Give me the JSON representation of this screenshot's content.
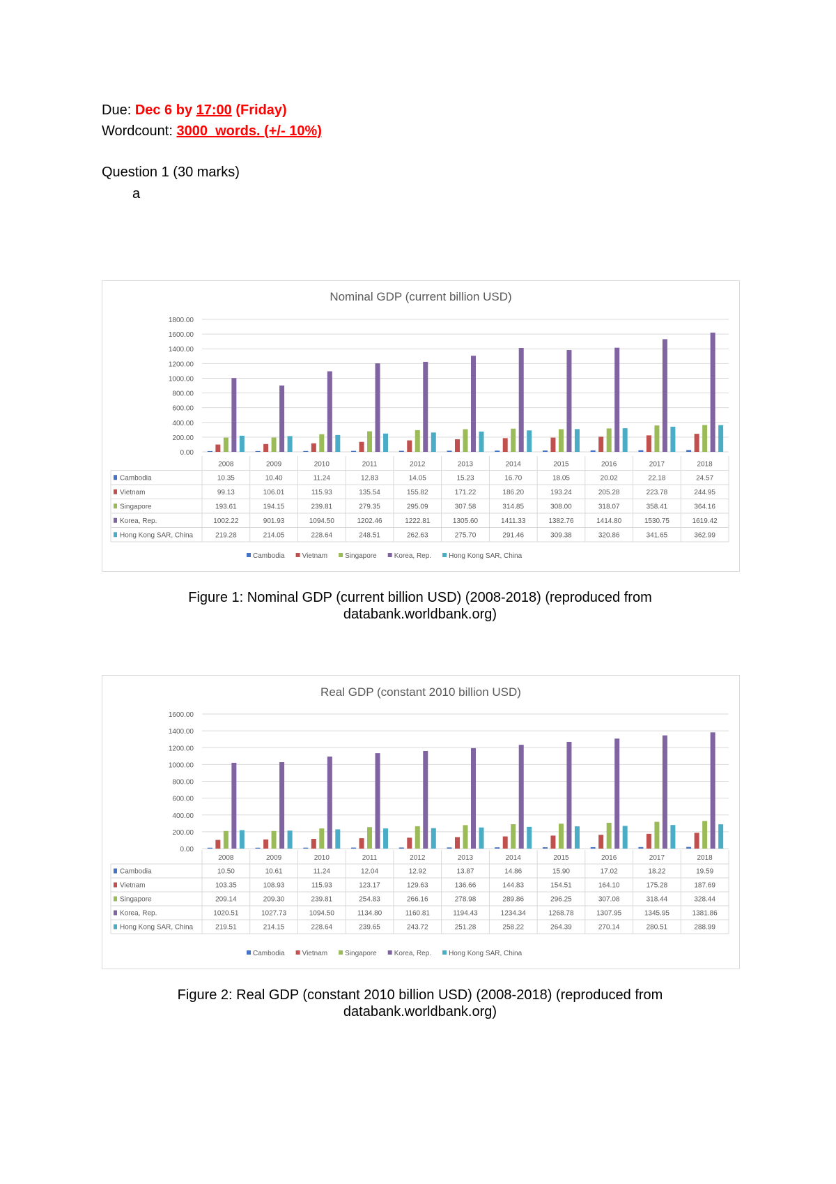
{
  "header": {
    "due_label": "Due:",
    "due_date": "Dec 6 by ",
    "due_time": "17:00",
    "due_day": " (Friday)",
    "wordcount_label": "Wordcount:",
    "wordcount_value": "3000  words. (+/- 10%)",
    "question": "Question 1 (30 marks)",
    "subpart": "a"
  },
  "captions": [
    {
      "line1": "Figure 1: Nominal GDP (current billion USD) (2008-2018) (reproduced from",
      "line2": "databank.worldbank.org)"
    },
    {
      "line1": "Figure 2: Real GDP (constant 2010 billion USD) (2008-2018) (reproduced from",
      "line2": "databank.worldbank.org)"
    }
  ],
  "chart_data": [
    {
      "type": "bar",
      "title": "Nominal GDP (current billion USD)",
      "categories": [
        "2008",
        "2009",
        "2010",
        "2011",
        "2012",
        "2013",
        "2014",
        "2015",
        "2016",
        "2017",
        "2018"
      ],
      "ylim": [
        0,
        1800
      ],
      "yticks": [
        "0.00",
        "200.00",
        "400.00",
        "600.00",
        "800.00",
        "1000.00",
        "1200.00",
        "1400.00",
        "1600.00",
        "1800.00"
      ],
      "grid": true,
      "legend": "bottom",
      "data_table": true,
      "series": [
        {
          "name": "Cambodia",
          "color": "#4472c4",
          "values": [
            10.35,
            10.4,
            11.24,
            12.83,
            14.05,
            15.23,
            16.7,
            18.05,
            20.02,
            22.18,
            24.57
          ]
        },
        {
          "name": "Vietnam",
          "color": "#c0504d",
          "values": [
            99.13,
            106.01,
            115.93,
            135.54,
            155.82,
            171.22,
            186.2,
            193.24,
            205.28,
            223.78,
            244.95
          ]
        },
        {
          "name": "Singapore",
          "color": "#9bbb59",
          "values": [
            193.61,
            194.15,
            239.81,
            279.35,
            295.09,
            307.58,
            314.85,
            308.0,
            318.07,
            358.41,
            364.16
          ]
        },
        {
          "name": "Korea, Rep.",
          "color": "#8064a2",
          "values": [
            1002.22,
            901.93,
            1094.5,
            1202.46,
            1222.81,
            1305.6,
            1411.33,
            1382.76,
            1414.8,
            1530.75,
            1619.42
          ]
        },
        {
          "name": "Hong Kong SAR, China",
          "color": "#4bacc6",
          "values": [
            219.28,
            214.05,
            228.64,
            248.51,
            262.63,
            275.7,
            291.46,
            309.38,
            320.86,
            341.65,
            362.99
          ]
        }
      ]
    },
    {
      "type": "bar",
      "title": "Real GDP (constant 2010 billion USD)",
      "categories": [
        "2008",
        "2009",
        "2010",
        "2011",
        "2012",
        "2013",
        "2014",
        "2015",
        "2016",
        "2017",
        "2018"
      ],
      "ylim": [
        0,
        1600
      ],
      "yticks": [
        "0.00",
        "200.00",
        "400.00",
        "600.00",
        "800.00",
        "1000.00",
        "1200.00",
        "1400.00",
        "1600.00"
      ],
      "grid": true,
      "legend": "bottom",
      "data_table": true,
      "series": [
        {
          "name": "Cambodia",
          "color": "#4472c4",
          "values": [
            10.5,
            10.61,
            11.24,
            12.04,
            12.92,
            13.87,
            14.86,
            15.9,
            17.02,
            18.22,
            19.59
          ]
        },
        {
          "name": "Vietnam",
          "color": "#c0504d",
          "values": [
            103.35,
            108.93,
            115.93,
            123.17,
            129.63,
            136.66,
            144.83,
            154.51,
            164.1,
            175.28,
            187.69
          ]
        },
        {
          "name": "Singapore",
          "color": "#9bbb59",
          "values": [
            209.14,
            209.3,
            239.81,
            254.83,
            266.16,
            278.98,
            289.86,
            296.25,
            307.08,
            318.44,
            328.44
          ]
        },
        {
          "name": "Korea, Rep.",
          "color": "#8064a2",
          "values": [
            1020.51,
            1027.73,
            1094.5,
            1134.8,
            1160.81,
            1194.43,
            1234.34,
            1268.78,
            1307.95,
            1345.95,
            1381.86
          ]
        },
        {
          "name": "Hong Kong SAR, China",
          "color": "#4bacc6",
          "values": [
            219.51,
            214.15,
            228.64,
            239.65,
            243.72,
            251.28,
            258.22,
            264.39,
            270.14,
            280.51,
            288.99
          ]
        }
      ]
    }
  ]
}
